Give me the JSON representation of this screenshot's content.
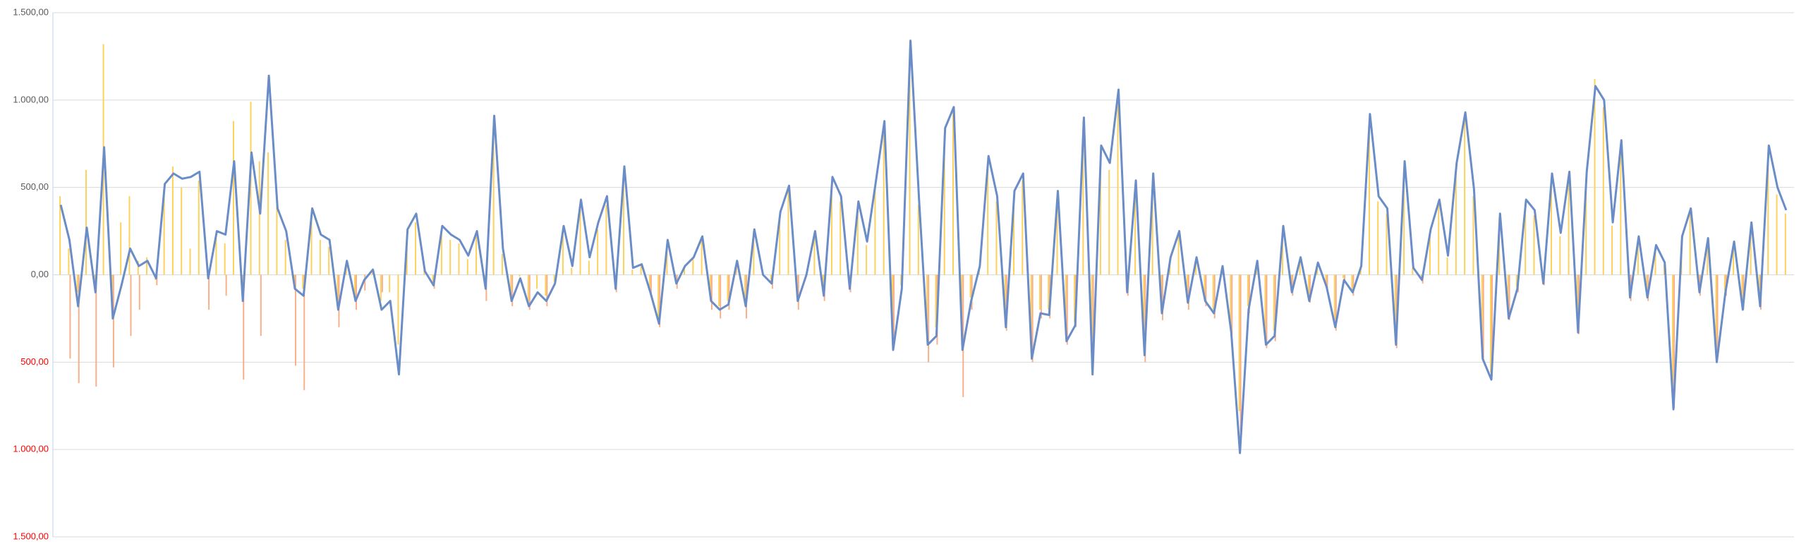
{
  "chart_data": {
    "type": "combo",
    "ylim": [
      -1500,
      1500
    ],
    "yticks": [
      {
        "value": 1500,
        "label": "1.500,00"
      },
      {
        "value": 1000,
        "label": "1.000,00"
      },
      {
        "value": 500,
        "label": "500,00"
      },
      {
        "value": 0,
        "label": "0,00"
      },
      {
        "value": -500,
        "label": "500,00"
      },
      {
        "value": -1000,
        "label": "1.000,00"
      },
      {
        "value": -1500,
        "label": "1.500,00"
      }
    ],
    "grid": true,
    "tick_label_color": "#595959",
    "negative_tick_label_color": "#ff0000",
    "series": [
      {
        "type": "bar",
        "color": "#fcd25c",
        "values": [
          450,
          150,
          -100,
          600,
          -50,
          1320,
          -200,
          300,
          450,
          80,
          100,
          -30,
          470,
          620,
          500,
          150,
          540,
          0,
          210,
          180,
          880,
          -100,
          990,
          650,
          700,
          400,
          200,
          -50,
          -80,
          320,
          200,
          160,
          -150,
          60,
          -120,
          0,
          30,
          -150,
          -100,
          -400,
          220,
          300,
          30,
          -40,
          250,
          200,
          180,
          90,
          220,
          -60,
          900,
          120,
          -120,
          -10,
          -150,
          -80,
          -120,
          -40,
          260,
          40,
          400,
          80,
          260,
          400,
          -60,
          580,
          30,
          50,
          -80,
          -250,
          180,
          -40,
          40,
          90,
          200,
          -120,
          -180,
          -150,
          70,
          -150,
          230,
          0,
          -40,
          330,
          480,
          -120,
          0,
          230,
          -100,
          520,
          420,
          -60,
          380,
          170,
          500,
          860,
          -400,
          -60,
          1300,
          400,
          -380,
          -300,
          800,
          950,
          -400,
          -130,
          40,
          650,
          420,
          -280,
          450,
          540,
          -450,
          -200,
          -200,
          450,
          -350,
          -270,
          880,
          -540,
          700,
          600,
          1020,
          -90,
          500,
          -420,
          540,
          -200,
          90,
          230,
          -140,
          90,
          -140,
          -200,
          40,
          -300,
          -780,
          -180,
          70,
          -380,
          -320,
          260,
          -90,
          90,
          -140,
          60,
          -60,
          -280,
          -20,
          -90,
          40,
          880,
          420,
          350,
          -380,
          610,
          40,
          -20,
          240,
          400,
          100,
          600,
          900,
          450,
          -450,
          -560,
          330,
          -230,
          -70,
          400,
          340,
          -40,
          560,
          220,
          550,
          -300,
          550,
          1120,
          960,
          280,
          720,
          -120,
          200,
          -120,
          160,
          60,
          -720,
          200,
          350,
          -90,
          190,
          -460,
          -90,
          170,
          -180,
          280,
          -160,
          700,
          460,
          350
        ]
      },
      {
        "type": "bar",
        "color": "#f8b08a",
        "values": [
          0,
          -480,
          -620,
          0,
          -640,
          0,
          -530,
          0,
          -350,
          -200,
          0,
          -60,
          0,
          0,
          0,
          0,
          0,
          -200,
          0,
          -120,
          0,
          -600,
          0,
          -350,
          0,
          0,
          0,
          -520,
          -660,
          0,
          0,
          0,
          -300,
          0,
          -200,
          -90,
          0,
          -100,
          0,
          0,
          0,
          0,
          0,
          -80,
          0,
          0,
          0,
          0,
          0,
          -150,
          0,
          0,
          -180,
          0,
          -200,
          0,
          -180,
          0,
          0,
          0,
          0,
          0,
          0,
          0,
          -100,
          0,
          0,
          0,
          -120,
          -300,
          0,
          -80,
          0,
          0,
          0,
          -200,
          -250,
          -200,
          0,
          -250,
          0,
          0,
          -80,
          0,
          0,
          -200,
          0,
          0,
          -150,
          0,
          0,
          -100,
          0,
          0,
          0,
          0,
          -420,
          0,
          0,
          0,
          -500,
          -400,
          0,
          0,
          -700,
          -200,
          0,
          0,
          0,
          -320,
          0,
          0,
          -500,
          -250,
          -250,
          0,
          -400,
          -300,
          0,
          -520,
          0,
          0,
          0,
          -120,
          0,
          -500,
          0,
          -260,
          0,
          0,
          -200,
          0,
          -180,
          -250,
          0,
          -340,
          -1000,
          -220,
          0,
          -420,
          -380,
          0,
          -120,
          0,
          -160,
          0,
          -90,
          -320,
          -40,
          -120,
          0,
          0,
          0,
          0,
          -420,
          0,
          0,
          -50,
          0,
          0,
          0,
          0,
          0,
          0,
          -480,
          -580,
          0,
          -260,
          -100,
          0,
          0,
          -60,
          0,
          0,
          0,
          -340,
          0,
          0,
          0,
          0,
          0,
          -150,
          0,
          -150,
          0,
          0,
          -760,
          0,
          0,
          -120,
          0,
          -480,
          -120,
          0,
          -200,
          0,
          -200,
          0,
          0,
          0
        ]
      },
      {
        "type": "line",
        "color": "#6a8cc7",
        "values": [
          400,
          200,
          -180,
          270,
          -100,
          730,
          -250,
          -60,
          150,
          50,
          80,
          -20,
          520,
          580,
          550,
          560,
          590,
          -20,
          250,
          230,
          650,
          -150,
          700,
          350,
          1140,
          380,
          250,
          -80,
          -120,
          380,
          230,
          200,
          -200,
          80,
          -150,
          -30,
          30,
          -200,
          -150,
          -570,
          260,
          350,
          20,
          -60,
          280,
          230,
          200,
          110,
          250,
          -80,
          910,
          150,
          -150,
          -20,
          -180,
          -100,
          -150,
          -50,
          280,
          50,
          430,
          100,
          300,
          450,
          -80,
          620,
          40,
          60,
          -100,
          -280,
          200,
          -50,
          50,
          100,
          220,
          -150,
          -200,
          -170,
          80,
          -180,
          260,
          0,
          -50,
          360,
          510,
          -150,
          0,
          250,
          -120,
          560,
          450,
          -80,
          420,
          190,
          530,
          880,
          -430,
          -80,
          1340,
          420,
          -400,
          -350,
          840,
          960,
          -430,
          -150,
          50,
          680,
          450,
          -300,
          480,
          580,
          -480,
          -220,
          -230,
          480,
          -380,
          -290,
          900,
          -570,
          740,
          640,
          1060,
          -100,
          540,
          -460,
          580,
          -220,
          100,
          250,
          -160,
          100,
          -150,
          -220,
          50,
          -330,
          -1020,
          -200,
          80,
          -400,
          -350,
          280,
          -100,
          100,
          -150,
          70,
          -70,
          -300,
          -30,
          -100,
          50,
          920,
          450,
          380,
          -400,
          650,
          40,
          -30,
          260,
          430,
          110,
          640,
          930,
          490,
          -480,
          -600,
          350,
          -250,
          -80,
          430,
          370,
          -50,
          580,
          240,
          590,
          -330,
          590,
          1080,
          1000,
          300,
          770,
          -130,
          220,
          -130,
          170,
          70,
          -770,
          220,
          380,
          -100,
          210,
          -500,
          -100,
          190,
          -200,
          300,
          -180,
          740,
          500,
          370
        ]
      }
    ]
  }
}
